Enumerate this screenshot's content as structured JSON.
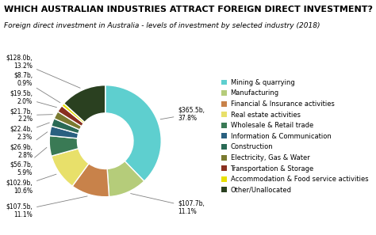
{
  "chart_data": {
    "type": "pie",
    "title": "WHICH AUSTRALIAN INDUSTRIES ATTRACT FOREIGN DIRECT INVESTMENT?",
    "subtitle": "Foreign direct investment in Australia - levels of investment by selected industry (2018)",
    "categories": [
      "Mining & quarrying",
      "Manufacturing",
      "Financial & Insurance activities",
      "Real estate activities",
      "Wholesale & Retail trade",
      "Information & Communication",
      "Construction",
      "Electricity, Gas & Water",
      "Transportation & Storage",
      "Accommodation & Food service activities",
      "Other/Unallocated"
    ],
    "values": [
      365.5,
      107.7,
      107.5,
      102.9,
      56.7,
      26.9,
      22.4,
      21.7,
      19.5,
      8.7,
      128.0
    ],
    "value_labels": [
      "$365.5b,\n37.8%",
      "$107.7b,\n11.1%",
      "$107.5b,\n11.1%",
      "$102.9b,\n10.6%",
      "$56.7b,\n5.9%",
      "$26.9b,\n2.8%",
      "$22.4b,\n2.3%",
      "$21.7b,\n2.2%",
      "$19.5b,\n2.0%",
      "$8.7b,\n0.9%",
      "$128.0b,\n13.2%"
    ],
    "colors": [
      "#5ecfcf",
      "#b5cc7a",
      "#c8824a",
      "#e8e06a",
      "#3a7a55",
      "#2a6080",
      "#2a6a55",
      "#7a7a30",
      "#8a3020",
      "#e8e000",
      "#2a4020"
    ],
    "legend": "center right"
  }
}
